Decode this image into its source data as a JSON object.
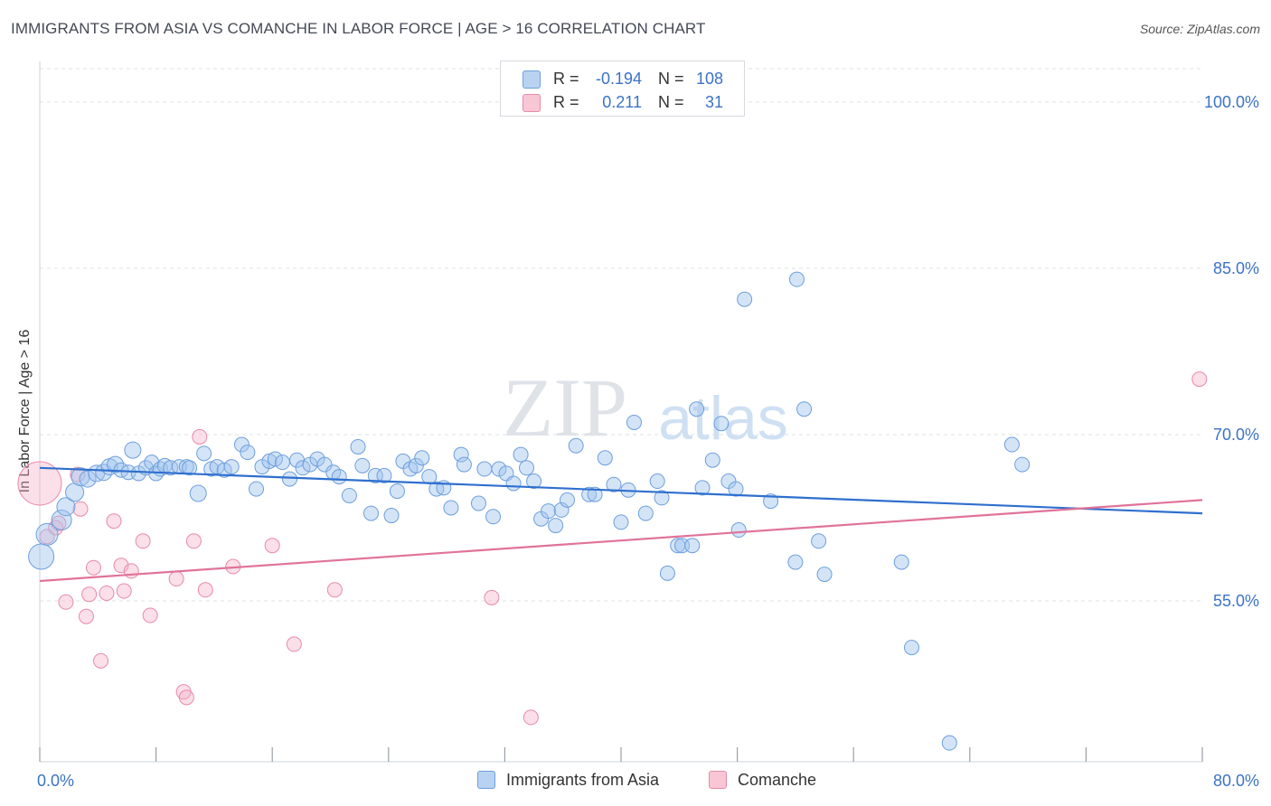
{
  "title": "IMMIGRANTS FROM ASIA VS COMANCHE IN LABOR FORCE | AGE > 16 CORRELATION CHART",
  "source": "Source: ZipAtlas.com",
  "watermark": {
    "zip": "ZIP",
    "atlas": "atlas"
  },
  "legend_stats": {
    "r_label": "R =",
    "n_label": "N =",
    "rows": [
      {
        "r": "-0.194",
        "n": "108",
        "fill": "#b8d3f2",
        "stroke": "#6d9fdc"
      },
      {
        "r": "0.211",
        "n": "31",
        "fill": "#f8c6d5",
        "stroke": "#e88aa8"
      }
    ]
  },
  "colors": {
    "blue_fill": "rgba(159,196,238,0.45)",
    "blue_stroke": "#6d9fdc",
    "blue_line": "#2f6fce",
    "pink_fill": "rgba(246,176,200,0.40)",
    "pink_stroke": "#e88aa8",
    "pink_line": "#e0739a",
    "tick_label": "#3b73c6",
    "grid": "#dfe2e7"
  },
  "chart_data": {
    "type": "scatter",
    "title": "IMMIGRANTS FROM ASIA VS COMANCHE IN LABOR FORCE | AGE > 16 CORRELATION CHART",
    "xlabel": "",
    "ylabel": "In Labor Force | Age > 16",
    "xlim": [
      0,
      80
    ],
    "ylim": [
      40.5,
      103
    ],
    "x_tick_labels": [
      {
        "value": 0,
        "label": "0.0%"
      },
      {
        "value": 80,
        "label": "80.0%"
      }
    ],
    "x_minor_ticks": [
      0,
      8,
      16,
      24,
      32,
      40,
      48,
      56,
      64,
      72,
      80
    ],
    "y_ticks": [
      {
        "value": 55,
        "label": "55.0%"
      },
      {
        "value": 70,
        "label": "70.0%"
      },
      {
        "value": 85,
        "label": "85.0%"
      },
      {
        "value": 100,
        "label": "100.0%"
      }
    ],
    "grid": true,
    "legend_position": "bottom",
    "series": [
      {
        "name": "Immigrants from Asia",
        "color": "#6d9fdc",
        "trend": {
          "x": [
            0,
            80
          ],
          "y": [
            67.0,
            62.9
          ]
        },
        "points": [
          [
            0.1,
            59.0,
            14
          ],
          [
            0.5,
            61.0,
            12
          ],
          [
            1.5,
            62.3,
            11
          ],
          [
            1.8,
            63.5,
            10
          ],
          [
            2.4,
            64.8,
            10
          ],
          [
            2.8,
            66.2,
            10
          ],
          [
            3.3,
            66.0,
            9
          ],
          [
            3.9,
            66.5,
            9
          ],
          [
            4.4,
            66.6,
            9
          ],
          [
            4.8,
            67.1,
            9
          ],
          [
            5.2,
            67.3,
            9
          ],
          [
            5.6,
            66.8,
            8
          ],
          [
            6.1,
            66.6,
            8
          ],
          [
            6.4,
            68.6,
            9
          ],
          [
            6.8,
            66.5,
            8
          ],
          [
            7.3,
            67.0,
            8
          ],
          [
            7.7,
            67.5,
            8
          ],
          [
            8.0,
            66.5,
            8
          ],
          [
            8.3,
            66.9,
            8
          ],
          [
            8.6,
            67.2,
            8
          ],
          [
            9.0,
            67.0,
            8
          ],
          [
            9.6,
            67.1,
            8
          ],
          [
            10.1,
            67.1,
            8
          ],
          [
            10.3,
            67.0,
            8
          ],
          [
            10.9,
            64.7,
            9
          ],
          [
            11.3,
            68.3,
            8
          ],
          [
            11.8,
            66.9,
            8
          ],
          [
            12.2,
            67.1,
            8
          ],
          [
            12.7,
            66.8,
            8
          ],
          [
            13.2,
            67.1,
            8
          ],
          [
            13.9,
            69.1,
            8
          ],
          [
            14.3,
            68.4,
            8
          ],
          [
            14.9,
            65.1,
            8
          ],
          [
            15.3,
            67.1,
            8
          ],
          [
            15.8,
            67.6,
            8
          ],
          [
            16.2,
            67.8,
            8
          ],
          [
            16.7,
            67.5,
            8
          ],
          [
            17.2,
            66.0,
            8
          ],
          [
            17.7,
            67.7,
            8
          ],
          [
            18.1,
            67.0,
            8
          ],
          [
            18.6,
            67.3,
            8
          ],
          [
            19.1,
            67.8,
            8
          ],
          [
            19.6,
            67.3,
            8
          ],
          [
            20.2,
            66.6,
            8
          ],
          [
            20.6,
            66.2,
            8
          ],
          [
            21.3,
            64.5,
            8
          ],
          [
            21.9,
            68.9,
            8
          ],
          [
            22.2,
            67.2,
            8
          ],
          [
            22.8,
            62.9,
            8
          ],
          [
            23.1,
            66.3,
            8
          ],
          [
            23.7,
            66.3,
            8
          ],
          [
            24.2,
            62.7,
            8
          ],
          [
            24.6,
            64.9,
            8
          ],
          [
            25.0,
            67.6,
            8
          ],
          [
            25.5,
            66.9,
            8
          ],
          [
            25.9,
            67.2,
            8
          ],
          [
            26.3,
            67.9,
            8
          ],
          [
            26.8,
            66.2,
            8
          ],
          [
            27.3,
            65.1,
            8
          ],
          [
            27.8,
            65.2,
            8
          ],
          [
            28.3,
            63.4,
            8
          ],
          [
            29.0,
            68.2,
            8
          ],
          [
            29.2,
            67.3,
            8
          ],
          [
            30.2,
            63.8,
            8
          ],
          [
            30.6,
            66.9,
            8
          ],
          [
            31.2,
            62.6,
            8
          ],
          [
            31.6,
            66.9,
            8
          ],
          [
            32.1,
            66.5,
            8
          ],
          [
            32.6,
            65.6,
            8
          ],
          [
            33.1,
            68.2,
            8
          ],
          [
            33.5,
            67.0,
            8
          ],
          [
            34.0,
            65.8,
            8
          ],
          [
            34.5,
            62.4,
            8
          ],
          [
            35.0,
            63.1,
            8
          ],
          [
            35.5,
            61.8,
            8
          ],
          [
            35.9,
            63.2,
            8
          ],
          [
            36.3,
            64.1,
            8
          ],
          [
            36.9,
            69.0,
            8
          ],
          [
            37.8,
            64.6,
            8
          ],
          [
            38.2,
            64.6,
            8
          ],
          [
            38.9,
            67.9,
            8
          ],
          [
            39.5,
            65.5,
            8
          ],
          [
            40.0,
            62.1,
            8
          ],
          [
            40.5,
            65.0,
            8
          ],
          [
            40.9,
            71.1,
            8
          ],
          [
            41.7,
            62.9,
            8
          ],
          [
            42.5,
            65.8,
            8
          ],
          [
            42.8,
            64.3,
            8
          ],
          [
            43.2,
            57.5,
            8
          ],
          [
            43.9,
            60.0,
            8
          ],
          [
            44.2,
            60.0,
            8
          ],
          [
            44.9,
            60.0,
            8
          ],
          [
            45.2,
            72.3,
            8
          ],
          [
            45.6,
            65.2,
            8
          ],
          [
            46.3,
            67.7,
            8
          ],
          [
            46.9,
            71.0,
            8
          ],
          [
            47.4,
            65.8,
            8
          ],
          [
            47.9,
            65.1,
            8
          ],
          [
            48.1,
            61.4,
            8
          ],
          [
            48.5,
            82.2,
            8
          ],
          [
            50.3,
            64.0,
            8
          ],
          [
            52.0,
            58.5,
            8
          ],
          [
            52.1,
            84.0,
            8
          ],
          [
            52.6,
            72.3,
            8
          ],
          [
            53.6,
            60.4,
            8
          ],
          [
            54.0,
            57.4,
            8
          ],
          [
            59.3,
            58.5,
            8
          ],
          [
            60.0,
            50.8,
            8
          ],
          [
            62.6,
            42.2,
            8
          ],
          [
            66.9,
            69.1,
            8
          ],
          [
            67.6,
            67.3,
            8
          ]
        ]
      },
      {
        "name": "Comanche",
        "color": "#e88aa8",
        "trend": {
          "x": [
            0,
            80
          ],
          "y": [
            56.8,
            64.1
          ]
        },
        "points": [
          [
            0.0,
            65.6,
            24
          ],
          [
            0.5,
            60.8,
            8
          ],
          [
            1.1,
            61.6,
            8
          ],
          [
            1.3,
            62.0,
            8
          ],
          [
            1.8,
            54.9,
            8
          ],
          [
            2.6,
            66.4,
            8
          ],
          [
            2.8,
            63.3,
            8
          ],
          [
            3.2,
            53.6,
            8
          ],
          [
            3.4,
            55.6,
            8
          ],
          [
            3.7,
            58.0,
            8
          ],
          [
            4.2,
            49.6,
            8
          ],
          [
            4.6,
            55.7,
            8
          ],
          [
            5.1,
            62.2,
            8
          ],
          [
            5.6,
            58.2,
            8
          ],
          [
            5.8,
            55.9,
            8
          ],
          [
            6.3,
            57.7,
            8
          ],
          [
            7.1,
            60.4,
            8
          ],
          [
            7.6,
            53.7,
            8
          ],
          [
            9.4,
            57.0,
            8
          ],
          [
            9.9,
            46.8,
            8
          ],
          [
            10.1,
            46.3,
            8
          ],
          [
            10.6,
            60.4,
            8
          ],
          [
            11.0,
            69.8,
            8
          ],
          [
            11.4,
            56.0,
            8
          ],
          [
            13.3,
            58.1,
            8
          ],
          [
            16.0,
            60.0,
            8
          ],
          [
            17.5,
            51.1,
            8
          ],
          [
            20.3,
            56.0,
            8
          ],
          [
            31.1,
            55.3,
            8
          ],
          [
            33.8,
            44.5,
            8
          ],
          [
            79.8,
            75.0,
            8
          ]
        ]
      }
    ]
  },
  "legend_bottom": {
    "items": [
      {
        "label": "Immigrants from Asia",
        "fill": "#b8d3f2",
        "stroke": "#6d9fdc"
      },
      {
        "label": "Comanche",
        "fill": "#f8c6d5",
        "stroke": "#e88aa8"
      }
    ]
  }
}
